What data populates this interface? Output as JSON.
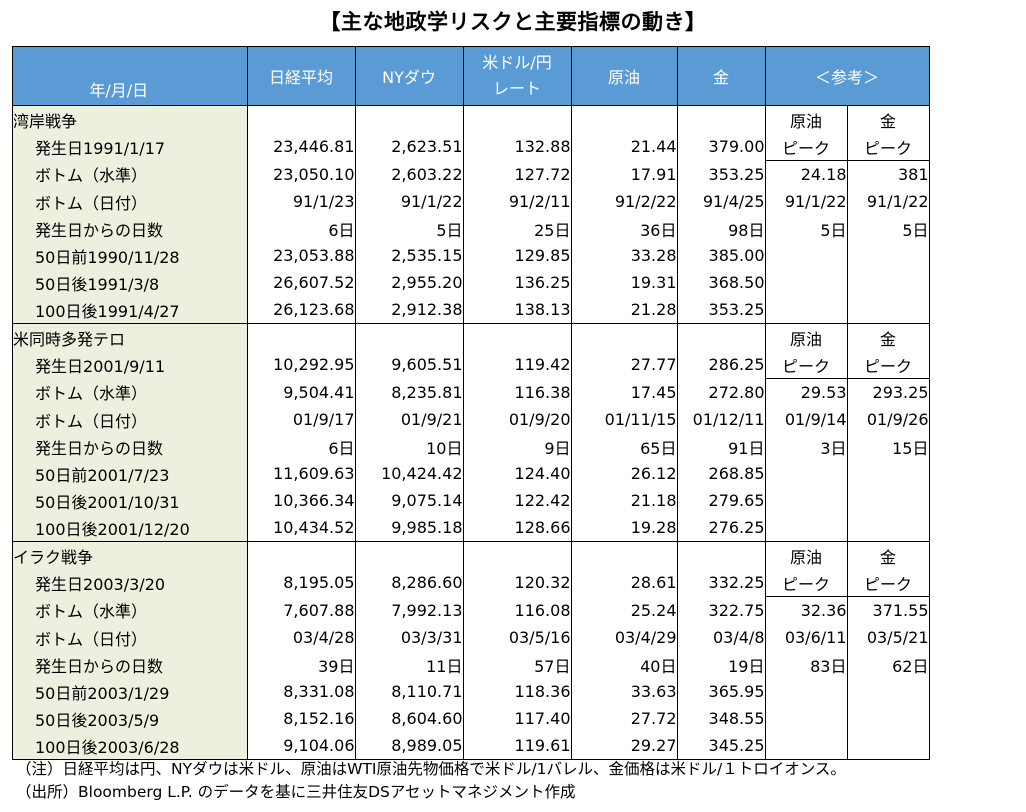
{
  "title": "【主な地政学リスクと主要指標の動き】",
  "header": {
    "date_label": "年/月/日",
    "cols": [
      "日経平均",
      "NYダウ",
      "米ドル/円 レート",
      "原油",
      "金"
    ],
    "fx_line1": "米ドル/円",
    "fx_line2": "レート",
    "ref": "＜参考＞"
  },
  "sections": [
    {
      "name": "湾岸戦争",
      "ref_head": [
        "原油",
        "金"
      ],
      "ref_sub": [
        "ピーク",
        "ピーク"
      ],
      "ref_rows": [
        [
          "24.18",
          "381"
        ],
        [
          "91/1/22",
          "91/1/22"
        ],
        [
          "5日",
          "5日"
        ]
      ],
      "rows": [
        {
          "label": "発生日",
          "date": "1991/1/17",
          "values": [
            "23,446.81",
            "2,623.51",
            "132.88",
            "21.44",
            "379.00"
          ]
        },
        {
          "label": "ボトム（水準）",
          "date": "",
          "values": [
            "23,050.10",
            "2,603.22",
            "127.72",
            "17.91",
            "353.25"
          ]
        },
        {
          "label": "ボトム（日付）",
          "date": "",
          "values": [
            "91/1/23",
            "91/1/22",
            "91/2/11",
            "91/2/22",
            "91/4/25"
          ]
        },
        {
          "label": "発生日からの日数",
          "date": "",
          "values": [
            "6日",
            "5日",
            "25日",
            "36日",
            "98日"
          ]
        },
        {
          "label": "50日前",
          "date": "1990/11/28",
          "values": [
            "23,053.88",
            "2,535.15",
            "129.85",
            "33.28",
            "385.00"
          ]
        },
        {
          "label": "50日後",
          "date": "1991/3/8",
          "values": [
            "26,607.52",
            "2,955.20",
            "136.25",
            "19.31",
            "368.50"
          ]
        },
        {
          "label": "100日後",
          "date": "1991/4/27",
          "values": [
            "26,123.68",
            "2,912.38",
            "138.13",
            "21.28",
            "353.25"
          ]
        }
      ]
    },
    {
      "name": "米同時多発テロ",
      "ref_head": [
        "原油",
        "金"
      ],
      "ref_sub": [
        "ピーク",
        "ピーク"
      ],
      "ref_rows": [
        [
          "29.53",
          "293.25"
        ],
        [
          "01/9/14",
          "01/9/26"
        ],
        [
          "3日",
          "15日"
        ]
      ],
      "rows": [
        {
          "label": "発生日",
          "date": "2001/9/11",
          "values": [
            "10,292.95",
            "9,605.51",
            "119.42",
            "27.77",
            "286.25"
          ]
        },
        {
          "label": "ボトム（水準）",
          "date": "",
          "values": [
            "9,504.41",
            "8,235.81",
            "116.38",
            "17.45",
            "272.80"
          ]
        },
        {
          "label": "ボトム（日付）",
          "date": "",
          "values": [
            "01/9/17",
            "01/9/21",
            "01/9/20",
            "01/11/15",
            "01/12/11"
          ]
        },
        {
          "label": "発生日からの日数",
          "date": "",
          "values": [
            "6日",
            "10日",
            "9日",
            "65日",
            "91日"
          ]
        },
        {
          "label": "50日前",
          "date": "2001/7/23",
          "values": [
            "11,609.63",
            "10,424.42",
            "124.40",
            "26.12",
            "268.85"
          ]
        },
        {
          "label": "50日後",
          "date": "2001/10/31",
          "values": [
            "10,366.34",
            "9,075.14",
            "122.42",
            "21.18",
            "279.65"
          ]
        },
        {
          "label": "100日後",
          "date": "2001/12/20",
          "values": [
            "10,434.52",
            "9,985.18",
            "128.66",
            "19.28",
            "276.25"
          ]
        }
      ]
    },
    {
      "name": "イラク戦争",
      "ref_head": [
        "原油",
        "金"
      ],
      "ref_sub": [
        "ピーク",
        "ピーク"
      ],
      "ref_rows": [
        [
          "32.36",
          "371.55"
        ],
        [
          "03/6/11",
          "03/5/21"
        ],
        [
          "83日",
          "62日"
        ]
      ],
      "rows": [
        {
          "label": "発生日",
          "date": "2003/3/20",
          "values": [
            "8,195.05",
            "8,286.60",
            "120.32",
            "28.61",
            "332.25"
          ]
        },
        {
          "label": "ボトム（水準）",
          "date": "",
          "values": [
            "7,607.88",
            "7,992.13",
            "116.08",
            "25.24",
            "322.75"
          ]
        },
        {
          "label": "ボトム（日付）",
          "date": "",
          "values": [
            "03/4/28",
            "03/3/31",
            "03/5/16",
            "03/4/29",
            "03/4/8"
          ]
        },
        {
          "label": "発生日からの日数",
          "date": "",
          "values": [
            "39日",
            "11日",
            "57日",
            "40日",
            "19日"
          ]
        },
        {
          "label": "50日前",
          "date": "2003/1/29",
          "values": [
            "8,331.08",
            "8,110.71",
            "118.36",
            "33.63",
            "365.95"
          ]
        },
        {
          "label": "50日後",
          "date": "2003/5/9",
          "values": [
            "8,152.16",
            "8,604.60",
            "117.40",
            "27.72",
            "348.55"
          ]
        },
        {
          "label": "100日後",
          "date": "2003/6/28",
          "values": [
            "9,104.06",
            "8,989.05",
            "119.61",
            "29.27",
            "345.25"
          ]
        }
      ]
    }
  ],
  "notes": [
    "（注）日経平均は円、NYダウは米ドル、原油はWTI原油先物価格で米ドル/1バレル、金価格は米ドル/１トロイオンス。",
    "（出所）Bloomberg L.P. のデータを基に三井住友DSアセットマネジメント作成"
  ],
  "colors": {
    "header_bg": "#5b9bd5",
    "label_bg": "#ebf1de"
  }
}
